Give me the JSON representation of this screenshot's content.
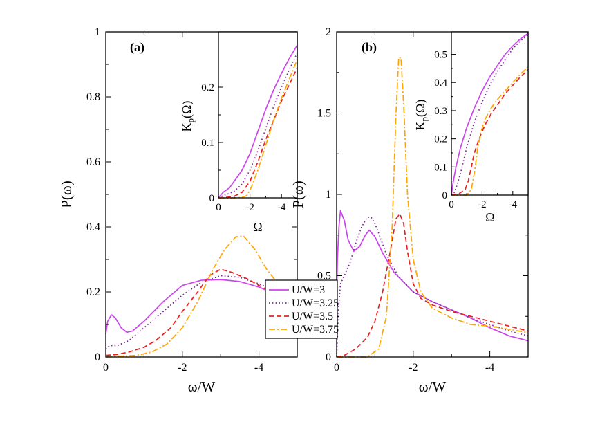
{
  "colors": {
    "U/W=3": "#cc44ee",
    "U/W=3.25": "#7a2a9a",
    "U/W=3.5": "#e82020",
    "U/W=3.75": "#ffa500"
  },
  "legend": {
    "placement": "center (between panels)",
    "entries": [
      {
        "label": "U/W=3",
        "style": "solid"
      },
      {
        "label": "U/W=3.25",
        "style": "dotted"
      },
      {
        "label": "U/W=3.5",
        "style": "dashed"
      },
      {
        "label": "U/W=3.75",
        "style": "dashdot"
      }
    ]
  },
  "chart_data": [
    {
      "type": "line",
      "panel_label": "(a)",
      "xlabel": "ω/W",
      "ylabel": "P(ω)",
      "xlim": [
        0,
        -5
      ],
      "ylim": [
        0,
        1
      ],
      "xticks": [
        0,
        -2,
        -4
      ],
      "xticklabels": [
        "0",
        "-2",
        "-4"
      ],
      "yticks": [
        0,
        0.2,
        0.4,
        0.6,
        0.8,
        1
      ],
      "yticklabels": [
        "0",
        "0.2",
        "0.4",
        "0.6",
        "0.8",
        "1"
      ],
      "series": [
        {
          "name": "U/W=3",
          "style": "solid",
          "x": [
            0,
            -0.05,
            -0.15,
            -0.25,
            -0.4,
            -0.55,
            -0.7,
            -1.0,
            -1.5,
            -2.0,
            -2.5,
            -3.0,
            -3.5,
            -4.0,
            -4.5,
            -5.0
          ],
          "y": [
            0.07,
            0.11,
            0.13,
            0.12,
            0.09,
            0.076,
            0.08,
            0.11,
            0.17,
            0.22,
            0.236,
            0.238,
            0.232,
            0.215,
            0.19,
            0.16
          ]
        },
        {
          "name": "U/W=3.25",
          "style": "dotted",
          "x": [
            0,
            -0.1,
            -0.3,
            -0.6,
            -1.0,
            -1.5,
            -2.0,
            -2.5,
            -3.0,
            -3.5,
            -4.0,
            -4.5,
            -5.0
          ],
          "y": [
            0.025,
            0.035,
            0.035,
            0.05,
            0.09,
            0.14,
            0.19,
            0.23,
            0.25,
            0.245,
            0.225,
            0.2,
            0.17
          ]
        },
        {
          "name": "U/W=3.5",
          "style": "dashed",
          "x": [
            0,
            -0.3,
            -0.6,
            -1.0,
            -1.3,
            -1.7,
            -2.0,
            -2.4,
            -2.7,
            -3.0,
            -3.3,
            -3.7,
            -4.0,
            -4.5,
            -5.0
          ],
          "y": [
            0.005,
            0.008,
            0.015,
            0.03,
            0.05,
            0.09,
            0.14,
            0.2,
            0.25,
            0.27,
            0.26,
            0.24,
            0.22,
            0.19,
            0.16
          ]
        },
        {
          "name": "U/W=3.75",
          "style": "dashdot",
          "x": [
            0,
            -0.8,
            -1.2,
            -1.6,
            -2.0,
            -2.4,
            -2.8,
            -3.1,
            -3.4,
            -3.6,
            -3.9,
            -4.2,
            -4.6,
            -5.0
          ],
          "y": [
            0,
            0.005,
            0.015,
            0.04,
            0.09,
            0.17,
            0.27,
            0.33,
            0.37,
            0.372,
            0.33,
            0.27,
            0.21,
            0.16
          ]
        }
      ],
      "inset": {
        "xlabel": "Ω",
        "ylabel": "K_p(Ω)",
        "xlim": [
          0,
          -5
        ],
        "ylim": [
          0,
          0.3
        ],
        "xticks": [
          0,
          -2,
          -4
        ],
        "xticklabels": [
          "0",
          "-2",
          "-4"
        ],
        "yticks": [
          0,
          0.1,
          0.2
        ],
        "yticklabels": [
          "0",
          "0.1",
          "0.2"
        ],
        "series": [
          {
            "name": "U/W=3",
            "style": "solid",
            "x": [
              0,
              -0.3,
              -0.7,
              -1.0,
              -1.5,
              -2.0,
              -2.5,
              -3.0,
              -3.5,
              -4.0,
              -4.5,
              -5.0
            ],
            "y": [
              0,
              0.01,
              0.018,
              0.03,
              0.05,
              0.08,
              0.12,
              0.16,
              0.195,
              0.225,
              0.252,
              0.276
            ]
          },
          {
            "name": "U/W=3.25",
            "style": "dotted",
            "x": [
              0,
              -0.3,
              -0.7,
              -1.0,
              -1.5,
              -2.0,
              -2.5,
              -3.0,
              -3.5,
              -4.0,
              -4.5,
              -5.0
            ],
            "y": [
              0,
              0.004,
              0.008,
              0.012,
              0.025,
              0.05,
              0.085,
              0.125,
              0.165,
              0.2,
              0.232,
              0.262
            ]
          },
          {
            "name": "U/W=3.5",
            "style": "dashed",
            "x": [
              0,
              -0.5,
              -1.0,
              -1.5,
              -2.0,
              -2.5,
              -3.0,
              -3.5,
              -4.0,
              -4.5,
              -5.0
            ],
            "y": [
              0,
              0.001,
              0.003,
              0.01,
              0.03,
              0.065,
              0.105,
              0.14,
              0.175,
              0.205,
              0.235
            ]
          },
          {
            "name": "U/W=3.75",
            "style": "dashdot",
            "x": [
              0,
              -1.0,
              -1.5,
              -1.8,
              -2.1,
              -2.5,
              -3.0,
              -3.5,
              -4.0,
              -4.5,
              -5.0
            ],
            "y": [
              0,
              0,
              0.001,
              0.004,
              0.02,
              0.05,
              0.095,
              0.14,
              0.18,
              0.215,
              0.25
            ]
          }
        ]
      }
    },
    {
      "type": "line",
      "panel_label": "(b)",
      "xlabel": "ω/W",
      "ylabel": "P(ω)",
      "xlim": [
        0,
        -5
      ],
      "ylim": [
        0,
        2
      ],
      "xticks": [
        0,
        -2,
        -4
      ],
      "xticklabels": [
        "0",
        "-2",
        "-4"
      ],
      "yticks": [
        0,
        0.5,
        1,
        1.5,
        2
      ],
      "yticklabels": [
        "0",
        "0.5",
        "1",
        "1.5",
        "2"
      ],
      "series": [
        {
          "name": "U/W=3",
          "style": "solid",
          "x": [
            0,
            -0.02,
            -0.06,
            -0.1,
            -0.2,
            -0.3,
            -0.45,
            -0.6,
            -0.75,
            -0.85,
            -1.0,
            -1.2,
            -1.5,
            -2.0,
            -2.5,
            -3.0,
            -3.5,
            -4.0,
            -4.5,
            -5.0
          ],
          "y": [
            0.35,
            0.6,
            0.8,
            0.9,
            0.84,
            0.72,
            0.65,
            0.68,
            0.75,
            0.78,
            0.74,
            0.64,
            0.52,
            0.4,
            0.34,
            0.29,
            0.24,
            0.18,
            0.13,
            0.1
          ]
        },
        {
          "name": "U/W=3.25",
          "style": "dotted",
          "x": [
            0,
            -0.05,
            -0.1,
            -0.2,
            -0.35,
            -0.5,
            -0.65,
            -0.8,
            -0.9,
            -1.0,
            -1.1,
            -1.3,
            -1.6,
            -2.0,
            -2.5,
            -3.0,
            -3.5,
            -4.0,
            -4.5,
            -5.0
          ],
          "y": [
            0,
            0.3,
            0.45,
            0.5,
            0.58,
            0.7,
            0.8,
            0.86,
            0.86,
            0.82,
            0.76,
            0.63,
            0.5,
            0.4,
            0.34,
            0.29,
            0.24,
            0.2,
            0.16,
            0.13
          ]
        },
        {
          "name": "U/W=3.5",
          "style": "dashed",
          "x": [
            0,
            -0.2,
            -0.5,
            -0.8,
            -1.0,
            -1.2,
            -1.4,
            -1.55,
            -1.65,
            -1.75,
            -1.85,
            -2.0,
            -2.2,
            -2.5,
            -3.0,
            -3.5,
            -4.0,
            -4.5,
            -5.0
          ],
          "y": [
            0,
            0.01,
            0.05,
            0.12,
            0.22,
            0.4,
            0.65,
            0.85,
            0.88,
            0.82,
            0.65,
            0.45,
            0.36,
            0.32,
            0.28,
            0.25,
            0.22,
            0.19,
            0.16
          ]
        },
        {
          "name": "U/W=3.75",
          "style": "dashdot",
          "x": [
            0,
            -0.8,
            -1.1,
            -1.3,
            -1.45,
            -1.55,
            -1.62,
            -1.68,
            -1.75,
            -1.85,
            -2.0,
            -2.2,
            -2.5,
            -3.0,
            -3.5,
            -4.0,
            -4.5,
            -5.0
          ],
          "y": [
            0,
            0,
            0.05,
            0.25,
            0.8,
            1.5,
            1.84,
            1.84,
            1.55,
            1.0,
            0.6,
            0.4,
            0.3,
            0.24,
            0.2,
            0.19,
            0.17,
            0.15
          ]
        }
      ],
      "inset": {
        "xlabel": "Ω",
        "ylabel": "K_p(Ω)",
        "xlim": [
          0,
          -5
        ],
        "ylim": [
          0,
          0.58
        ],
        "xticks": [
          0,
          -2,
          -4
        ],
        "xticklabels": [
          "0",
          "-2",
          "-4"
        ],
        "yticks": [
          0,
          0.1,
          0.2,
          0.3,
          0.4,
          0.5
        ],
        "yticklabels": [
          "0",
          "0.1",
          "0.2",
          "0.3",
          "0.4",
          "0.5"
        ],
        "series": [
          {
            "name": "U/W=3",
            "style": "solid",
            "x": [
              0,
              -0.1,
              -0.3,
              -0.6,
              -1.0,
              -1.5,
              -2.0,
              -2.5,
              -3.0,
              -3.5,
              -4.0,
              -4.5,
              -5.0
            ],
            "y": [
              0,
              0.04,
              0.1,
              0.17,
              0.24,
              0.31,
              0.37,
              0.42,
              0.46,
              0.5,
              0.53,
              0.555,
              0.575
            ]
          },
          {
            "name": "U/W=3.25",
            "style": "dotted",
            "x": [
              0,
              -0.2,
              -0.4,
              -0.7,
              -1.0,
              -1.5,
              -2.0,
              -2.5,
              -3.0,
              -3.5,
              -4.0,
              -4.5,
              -5.0
            ],
            "y": [
              0,
              0.01,
              0.04,
              0.1,
              0.17,
              0.26,
              0.33,
              0.39,
              0.44,
              0.48,
              0.52,
              0.548,
              0.57
            ]
          },
          {
            "name": "U/W=3.5",
            "style": "dashed",
            "x": [
              0,
              -0.5,
              -0.9,
              -1.1,
              -1.3,
              -1.5,
              -1.8,
              -2.2,
              -2.6,
              -3.0,
              -3.5,
              -4.0,
              -4.5,
              -5.0
            ],
            "y": [
              0,
              0.005,
              0.02,
              0.05,
              0.1,
              0.15,
              0.2,
              0.25,
              0.29,
              0.32,
              0.36,
              0.39,
              0.42,
              0.445
            ]
          },
          {
            "name": "U/W=3.75",
            "style": "dashdot",
            "x": [
              0,
              -1.0,
              -1.3,
              -1.5,
              -1.7,
              -1.9,
              -2.2,
              -2.6,
              -3.0,
              -3.5,
              -4.0,
              -4.5,
              -5.0
            ],
            "y": [
              0,
              0,
              0.02,
              0.08,
              0.16,
              0.22,
              0.27,
              0.31,
              0.34,
              0.37,
              0.4,
              0.43,
              0.455
            ]
          }
        ]
      }
    }
  ]
}
